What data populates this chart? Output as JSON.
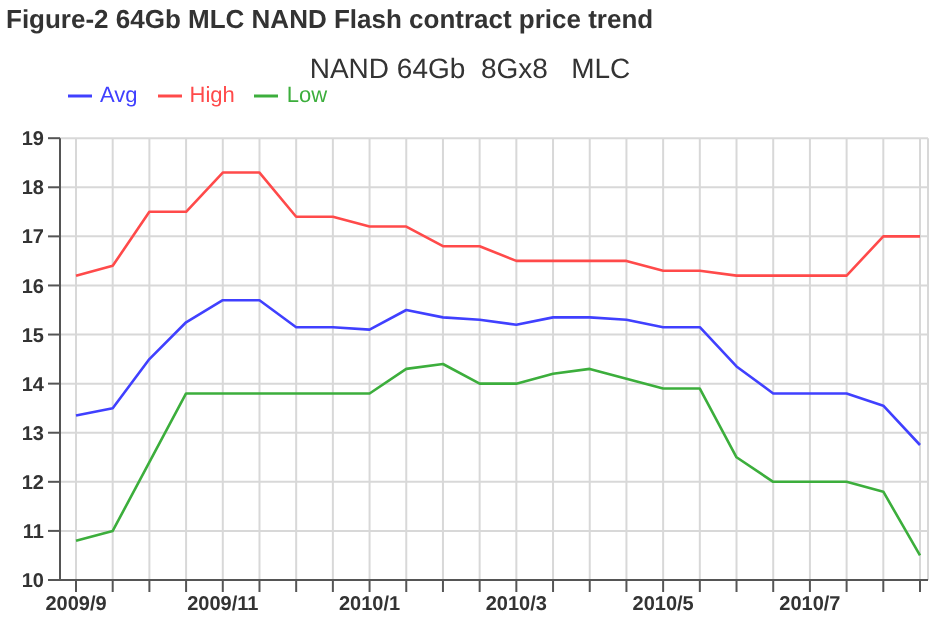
{
  "chart_data": {
    "type": "line",
    "title": "Figure-2  64Gb MLC NAND Flash contract price trend",
    "subtitle": "NAND 64Gb  8Gx8   MLC",
    "categories": [
      "2009/9",
      null,
      null,
      null,
      "2009/11",
      null,
      null,
      null,
      "2010/1",
      null,
      null,
      null,
      "2010/3",
      null,
      null,
      null,
      "2010/5",
      null,
      null,
      null,
      "2010/7",
      null,
      null,
      null
    ],
    "series": [
      {
        "name": "High",
        "color": "#ff4a4a",
        "values": [
          16.2,
          16.4,
          17.5,
          17.5,
          18.3,
          18.3,
          17.4,
          17.4,
          17.2,
          17.2,
          16.8,
          16.8,
          16.5,
          16.5,
          16.5,
          16.5,
          16.3,
          16.3,
          16.2,
          16.2,
          16.2,
          16.2,
          17.0,
          17.0
        ]
      },
      {
        "name": "Low",
        "color": "#3cae3c",
        "values": [
          10.8,
          11.0,
          12.4,
          13.8,
          13.8,
          13.8,
          13.8,
          13.8,
          13.8,
          14.3,
          14.4,
          14.0,
          14.0,
          14.2,
          14.3,
          14.1,
          13.9,
          13.9,
          12.5,
          12.0,
          12.0,
          12.0,
          11.8,
          10.5
        ]
      },
      {
        "name": "Avg",
        "color": "#4040ff",
        "values": [
          13.35,
          13.5,
          14.5,
          15.25,
          15.7,
          15.7,
          15.15,
          15.15,
          15.1,
          15.5,
          15.35,
          15.3,
          15.2,
          15.35,
          15.35,
          15.3,
          15.15,
          15.15,
          14.35,
          13.8,
          13.8,
          13.8,
          13.55,
          12.75
        ]
      }
    ],
    "ylim": [
      10,
      19
    ],
    "yticks": [
      10,
      11,
      12,
      13,
      14,
      15,
      16,
      17,
      18,
      19
    ],
    "grid": true,
    "legend": "top left",
    "marker": "none",
    "line_style": "solid"
  }
}
